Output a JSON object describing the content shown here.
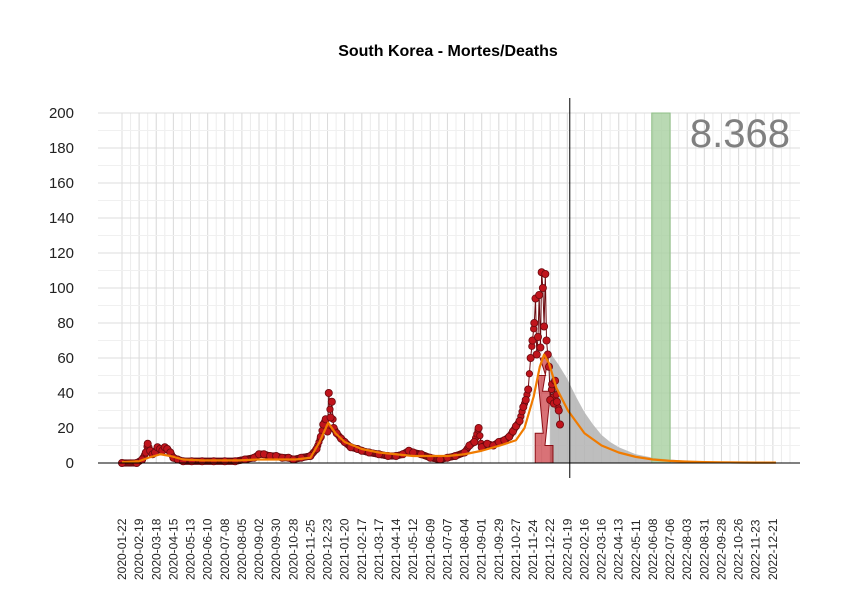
{
  "chart_data": {
    "type": "scatter",
    "title": "South Korea - Mortes/Deaths",
    "counter_label": "8.368",
    "ylim": [
      0,
      200
    ],
    "yticks": [
      0,
      20,
      40,
      60,
      80,
      100,
      120,
      140,
      160,
      180,
      200
    ],
    "xlim": [
      "2020-01-22",
      "2023-01-18"
    ],
    "xticks": [
      "2020-01-22",
      "2020-02-19",
      "2020-03-18",
      "2020-04-15",
      "2020-05-13",
      "2020-06-10",
      "2020-07-08",
      "2020-08-05",
      "2020-09-02",
      "2020-09-30",
      "2020-10-28",
      "2020-11-25",
      "2020-12-23",
      "2021-01-20",
      "2021-02-17",
      "2021-03-17",
      "2021-04-14",
      "2021-05-12",
      "2021-06-09",
      "2021-07-07",
      "2021-08-04",
      "2021-09-01",
      "2021-09-29",
      "2021-10-27",
      "2021-11-24",
      "2021-12-22",
      "2022-01-19",
      "2022-02-16",
      "2022-03-16",
      "2022-04-13",
      "2022-05-11",
      "2022-06-08",
      "2022-07-06",
      "2022-08-03",
      "2022-08-31",
      "2022-09-28",
      "2022-10-26",
      "2022-11-23",
      "2022-12-21"
    ],
    "grid": true,
    "vline_date": "2022-01-23",
    "green_band": [
      "2022-06-06",
      "2022-07-06"
    ],
    "colors": {
      "points": "#c0141c",
      "point_stroke": "#6b0a0f",
      "smooth": "#f07b00",
      "forecast_band": "#b3b3b3",
      "green_band": "#a8d0a0",
      "bars": "#c0141c",
      "vline": "#000000"
    },
    "observed_daily": [
      [
        "2020-01-22",
        0
      ],
      [
        "2020-02-15",
        0
      ],
      [
        "2020-02-24",
        2
      ],
      [
        "2020-03-01",
        6
      ],
      [
        "2020-03-04",
        11
      ],
      [
        "2020-03-08",
        7
      ],
      [
        "2020-03-12",
        5
      ],
      [
        "2020-03-16",
        6
      ],
      [
        "2020-03-20",
        9
      ],
      [
        "2020-03-24",
        8
      ],
      [
        "2020-03-28",
        7
      ],
      [
        "2020-04-01",
        9
      ],
      [
        "2020-04-05",
        8
      ],
      [
        "2020-04-10",
        6
      ],
      [
        "2020-04-15",
        3
      ],
      [
        "2020-04-22",
        2
      ],
      [
        "2020-05-01",
        1
      ],
      [
        "2020-05-15",
        1
      ],
      [
        "2020-06-01",
        1
      ],
      [
        "2020-06-20",
        1
      ],
      [
        "2020-07-08",
        1
      ],
      [
        "2020-07-25",
        1
      ],
      [
        "2020-08-10",
        2
      ],
      [
        "2020-08-25",
        3
      ],
      [
        "2020-09-02",
        5
      ],
      [
        "2020-09-10",
        5
      ],
      [
        "2020-09-20",
        4
      ],
      [
        "2020-09-30",
        4
      ],
      [
        "2020-10-10",
        3
      ],
      [
        "2020-10-20",
        3
      ],
      [
        "2020-10-28",
        2
      ],
      [
        "2020-11-10",
        3
      ],
      [
        "2020-11-25",
        4
      ],
      [
        "2020-12-05",
        8
      ],
      [
        "2020-12-12",
        15
      ],
      [
        "2020-12-16",
        22
      ],
      [
        "2020-12-20",
        25
      ],
      [
        "2020-12-23",
        18
      ],
      [
        "2020-12-25",
        40
      ],
      [
        "2020-12-28",
        26
      ],
      [
        "2020-12-30",
        35
      ],
      [
        "2021-01-02",
        20
      ],
      [
        "2021-01-07",
        17
      ],
      [
        "2021-01-14",
        14
      ],
      [
        "2021-01-20",
        12
      ],
      [
        "2021-01-30",
        9
      ],
      [
        "2021-02-10",
        8
      ],
      [
        "2021-02-17",
        7
      ],
      [
        "2021-03-01",
        6
      ],
      [
        "2021-03-17",
        5
      ],
      [
        "2021-04-01",
        4
      ],
      [
        "2021-04-14",
        4
      ],
      [
        "2021-04-25",
        5
      ],
      [
        "2021-05-05",
        7
      ],
      [
        "2021-05-12",
        6
      ],
      [
        "2021-05-25",
        5
      ],
      [
        "2021-06-09",
        3
      ],
      [
        "2021-06-25",
        2
      ],
      [
        "2021-07-07",
        3
      ],
      [
        "2021-07-20",
        4
      ],
      [
        "2021-08-04",
        6
      ],
      [
        "2021-08-12",
        10
      ],
      [
        "2021-08-20",
        12
      ],
      [
        "2021-08-27",
        20
      ],
      [
        "2021-09-01",
        9
      ],
      [
        "2021-09-10",
        11
      ],
      [
        "2021-09-20",
        10
      ],
      [
        "2021-09-29",
        12
      ],
      [
        "2021-10-08",
        13
      ],
      [
        "2021-10-16",
        15
      ],
      [
        "2021-10-22",
        18
      ],
      [
        "2021-10-27",
        21
      ],
      [
        "2021-11-02",
        24
      ],
      [
        "2021-11-08",
        32
      ],
      [
        "2021-11-12",
        36
      ],
      [
        "2021-11-16",
        42
      ],
      [
        "2021-11-20",
        60
      ],
      [
        "2021-11-23",
        70
      ],
      [
        "2021-11-26",
        80
      ],
      [
        "2021-11-28",
        94
      ],
      [
        "2021-11-30",
        62
      ],
      [
        "2021-12-02",
        72
      ],
      [
        "2021-12-04",
        96
      ],
      [
        "2021-12-06",
        66
      ],
      [
        "2021-12-08",
        109
      ],
      [
        "2021-12-10",
        100
      ],
      [
        "2021-12-12",
        78
      ],
      [
        "2021-12-14",
        108
      ],
      [
        "2021-12-16",
        70
      ],
      [
        "2021-12-18",
        62
      ],
      [
        "2021-12-20",
        55
      ],
      [
        "2021-12-22",
        36
      ],
      [
        "2021-12-25",
        45
      ],
      [
        "2021-12-28",
        34
      ],
      [
        "2021-12-30",
        47
      ],
      [
        "2022-01-02",
        35
      ],
      [
        "2022-01-05",
        30
      ],
      [
        "2022-01-07",
        22
      ]
    ],
    "smooth_line": [
      [
        "2020-01-22",
        0.5
      ],
      [
        "2020-02-19",
        1
      ],
      [
        "2020-03-05",
        3
      ],
      [
        "2020-03-25",
        5
      ],
      [
        "2020-04-10",
        4
      ],
      [
        "2020-05-01",
        2
      ],
      [
        "2020-06-01",
        1.5
      ],
      [
        "2020-07-01",
        1.5
      ],
      [
        "2020-08-01",
        1.5
      ],
      [
        "2020-09-01",
        2
      ],
      [
        "2020-10-01",
        2
      ],
      [
        "2020-11-01",
        2
      ],
      [
        "2020-11-25",
        3
      ],
      [
        "2020-12-10",
        12
      ],
      [
        "2020-12-24",
        23
      ],
      [
        "2021-01-05",
        17
      ],
      [
        "2021-01-20",
        12
      ],
      [
        "2021-02-17",
        8
      ],
      [
        "2021-03-17",
        6
      ],
      [
        "2021-04-14",
        5
      ],
      [
        "2021-05-12",
        4
      ],
      [
        "2021-06-09",
        4
      ],
      [
        "2021-07-07",
        4
      ],
      [
        "2021-08-04",
        5
      ],
      [
        "2021-09-01",
        7
      ],
      [
        "2021-10-01",
        10
      ],
      [
        "2021-10-27",
        13
      ],
      [
        "2021-11-10",
        20
      ],
      [
        "2021-11-25",
        38
      ],
      [
        "2021-12-05",
        55
      ],
      [
        "2021-12-12",
        62
      ],
      [
        "2021-12-20",
        57
      ],
      [
        "2022-01-01",
        43
      ],
      [
        "2022-01-20",
        30
      ],
      [
        "2022-02-16",
        17
      ],
      [
        "2022-03-16",
        10
      ],
      [
        "2022-04-13",
        6
      ],
      [
        "2022-05-11",
        3.5
      ],
      [
        "2022-06-08",
        2
      ],
      [
        "2022-07-06",
        1.2
      ],
      [
        "2022-08-03",
        0.8
      ],
      [
        "2022-08-31",
        0.5
      ],
      [
        "2022-09-28",
        0.4
      ],
      [
        "2022-10-26",
        0.3
      ],
      [
        "2022-11-23",
        0.2
      ],
      [
        "2022-12-21",
        0.2
      ],
      [
        "2022-12-26",
        0.2
      ]
    ],
    "forecast_band": [
      [
        "2021-12-22",
        0,
        63
      ],
      [
        "2022-01-05",
        0,
        56
      ],
      [
        "2022-01-19",
        0,
        48
      ],
      [
        "2022-02-02",
        0,
        38
      ],
      [
        "2022-02-16",
        0,
        29
      ],
      [
        "2022-03-02",
        0,
        22
      ],
      [
        "2022-03-16",
        0,
        16
      ],
      [
        "2022-03-30",
        0,
        12
      ],
      [
        "2022-04-13",
        0,
        9
      ],
      [
        "2022-04-27",
        0,
        7
      ],
      [
        "2022-05-11",
        0,
        5
      ],
      [
        "2022-06-08",
        0,
        3
      ],
      [
        "2022-07-06",
        0,
        2
      ],
      [
        "2022-08-03",
        0,
        1.2
      ],
      [
        "2022-08-31",
        0,
        0.8
      ],
      [
        "2022-09-28",
        0,
        0.5
      ],
      [
        "2022-12-26",
        0,
        0.3
      ]
    ],
    "bars": [
      [
        "2021-12-04",
        17
      ],
      [
        "2021-12-08",
        50
      ],
      [
        "2021-12-12",
        60
      ],
      [
        "2021-12-16",
        41
      ],
      [
        "2021-12-20",
        10
      ]
    ]
  }
}
